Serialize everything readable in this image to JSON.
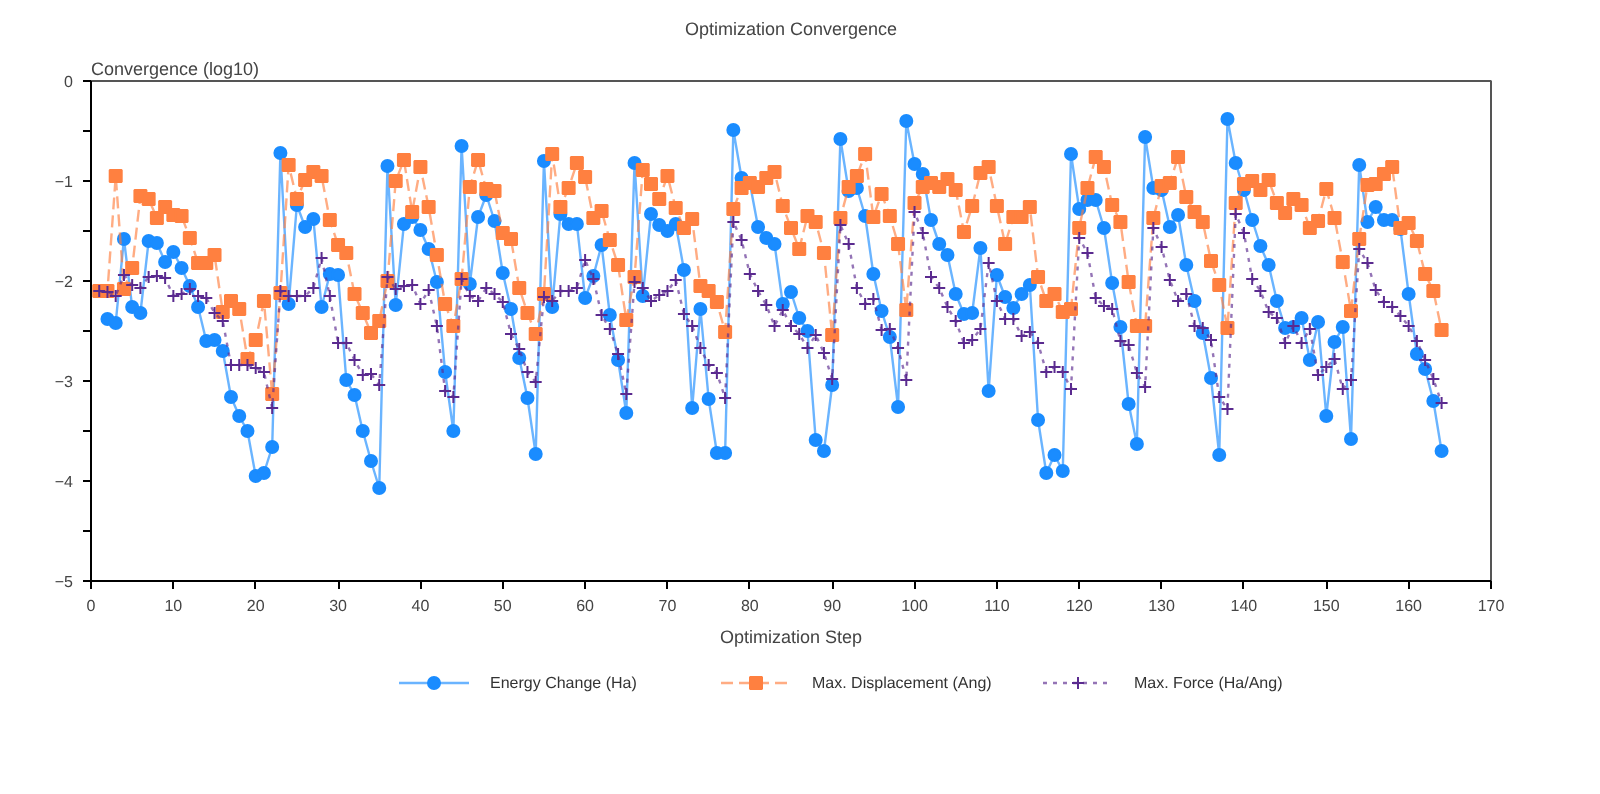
{
  "chart_data": {
    "type": "line",
    "title": "Optimization Convergence",
    "xlabel": "Optimization Step",
    "ylabel": "Convergence (log10)",
    "xlim": [
      0,
      170
    ],
    "xticks": [
      0,
      10,
      20,
      30,
      40,
      50,
      60,
      70,
      80,
      90,
      100,
      110,
      120,
      130,
      140,
      150,
      160,
      170
    ],
    "ylim": [
      -5,
      0
    ],
    "yticks": [
      -5,
      {
        "value": -4.5,
        "label": null
      },
      -4,
      {
        "value": -3.5,
        "label": null
      },
      -3,
      {
        "value": -2.5,
        "label": null
      },
      -2,
      {
        "value": -1.5,
        "label": null
      },
      -1,
      {
        "value": -0.5,
        "label": null
      },
      0
    ],
    "grid": false,
    "legend": "bottom",
    "x": [
      1,
      2,
      3,
      4,
      5,
      6,
      7,
      8,
      9,
      10,
      11,
      12,
      13,
      14,
      15,
      16,
      17,
      18,
      19,
      20,
      21,
      22,
      23,
      24,
      25,
      26,
      27,
      28,
      29,
      30,
      31,
      32,
      33,
      34,
      35,
      36,
      37,
      38,
      39,
      40,
      41,
      42,
      43,
      44,
      45,
      46,
      47,
      48,
      49,
      50,
      51,
      52,
      53,
      54,
      55,
      56,
      57,
      58,
      59,
      60,
      61,
      62,
      63,
      64,
      65,
      66,
      67,
      68,
      69,
      70,
      71,
      72,
      73,
      74,
      75,
      76,
      77,
      78,
      79,
      80,
      81,
      82,
      83,
      84,
      85,
      86,
      87,
      88,
      89,
      90,
      91,
      92,
      93,
      94,
      95,
      96,
      97,
      98,
      99,
      100,
      101,
      102,
      103,
      104,
      105,
      106,
      107,
      108,
      109,
      110,
      111,
      112,
      113,
      114,
      115,
      116,
      117,
      118,
      119,
      120,
      121,
      122,
      123,
      124,
      125,
      126,
      127,
      128,
      129,
      130,
      131,
      132,
      133,
      134,
      135,
      136,
      137,
      138,
      139,
      140,
      141,
      142,
      143,
      144,
      145,
      146,
      147,
      148,
      149,
      150,
      151,
      152,
      153,
      154,
      155,
      156,
      157,
      158,
      159,
      160,
      161,
      162,
      163,
      164
    ],
    "series": [
      {
        "name": "Energy Change (Ha)",
        "color": "#1a8cff",
        "marker": "circle",
        "line_style": "solid",
        "values": [
          null,
          -2.38,
          -2.42,
          -1.58,
          -2.26,
          -2.32,
          -1.6,
          -1.62,
          -1.81,
          -1.71,
          -1.87,
          -2.05,
          -2.26,
          -2.6,
          -2.59,
          -2.7,
          -3.16,
          -3.35,
          -3.5,
          -3.95,
          -3.92,
          -3.66,
          -0.72,
          -2.23,
          -1.24,
          -1.46,
          -1.38,
          -2.26,
          -1.93,
          -1.94,
          -2.99,
          -3.14,
          -3.5,
          -3.8,
          -4.07,
          -0.85,
          -2.24,
          -1.43,
          -1.36,
          -1.49,
          -1.68,
          -2.01,
          -2.91,
          -3.5,
          -0.65,
          -2.03,
          -1.36,
          -1.14,
          -1.4,
          -1.92,
          -2.28,
          -2.77,
          -3.17,
          -3.73,
          -0.8,
          -2.26,
          -1.33,
          -1.43,
          -1.43,
          -2.17,
          -1.95,
          -1.64,
          -2.34,
          -2.79,
          -3.32,
          -0.82,
          -2.15,
          -1.33,
          -1.44,
          -1.5,
          -1.43,
          -1.89,
          -3.27,
          -2.28,
          -3.18,
          -3.72,
          -3.72,
          -0.49,
          -0.97,
          -1.02,
          -1.46,
          -1.57,
          -1.63,
          -2.23,
          -2.11,
          -2.37,
          -2.5,
          -3.59,
          -3.7,
          -3.04,
          -0.58,
          -1.1,
          -1.07,
          -1.35,
          -1.93,
          -2.3,
          -2.56,
          -3.26,
          -0.4,
          -0.83,
          -0.93,
          -1.39,
          -1.63,
          -1.74,
          -2.13,
          -2.33,
          -2.32,
          -1.67,
          -3.1,
          -1.94,
          -2.16,
          -2.27,
          -2.13,
          -2.04,
          -3.39,
          -3.92,
          -3.74,
          -3.9,
          -0.73,
          -1.28,
          -1.19,
          -1.19,
          -1.47,
          -2.02,
          -2.46,
          -3.23,
          -3.63,
          -0.56,
          -1.07,
          -1.09,
          -1.46,
          -1.34,
          -1.84,
          -2.2,
          -2.52,
          -2.97,
          -3.74,
          -0.38,
          -0.82,
          -1.09,
          -1.39,
          -1.65,
          -1.84,
          -2.2,
          -2.47,
          -2.46,
          -2.37,
          -2.79,
          -2.41,
          -3.35,
          -2.61,
          -2.46,
          -3.58,
          -0.84,
          -1.41,
          -1.26,
          -1.39,
          -1.39,
          -1.48,
          -2.13,
          -2.73,
          -2.88,
          -3.2,
          -3.7
        ]
      },
      {
        "name": "Max. Displacement (Ang)",
        "color": "#ff8040",
        "marker": "square",
        "line_style": "dashed",
        "values": [
          -2.1,
          -2.1,
          -0.95,
          -2.08,
          -1.87,
          -1.15,
          -1.18,
          -1.37,
          -1.26,
          -1.34,
          -1.35,
          -1.57,
          -1.82,
          -1.82,
          -1.74,
          -2.31,
          -2.2,
          -2.28,
          -2.78,
          -2.59,
          -2.2,
          -3.13,
          -2.12,
          -0.84,
          -1.18,
          -0.99,
          -0.91,
          -0.95,
          -1.39,
          -1.64,
          -1.72,
          -2.13,
          -2.32,
          -2.52,
          -2.4,
          -2.0,
          -1.0,
          -0.79,
          -1.31,
          -0.86,
          -1.26,
          -1.74,
          -2.23,
          -2.45,
          -1.98,
          -1.06,
          -0.79,
          -1.08,
          -1.1,
          -1.52,
          -1.58,
          -2.07,
          -2.32,
          -2.53,
          -2.13,
          -0.73,
          -1.26,
          -1.07,
          -0.82,
          -0.96,
          -1.37,
          -1.3,
          -1.59,
          -1.84,
          -2.39,
          -1.96,
          -0.89,
          -1.03,
          -1.18,
          -0.95,
          -1.27,
          -1.47,
          -1.38,
          -2.05,
          -2.1,
          -2.21,
          -2.51,
          -1.28,
          -1.07,
          -1.02,
          -1.06,
          -0.97,
          -0.91,
          -1.25,
          -1.47,
          -1.68,
          -1.35,
          -1.41,
          -1.72,
          -2.54,
          -1.37,
          -1.06,
          -0.95,
          -0.73,
          -1.36,
          -1.13,
          -1.35,
          -1.63,
          -2.29,
          -1.22,
          -1.06,
          -1.02,
          -1.06,
          -0.98,
          -1.09,
          -1.51,
          -1.25,
          -0.92,
          -0.86,
          -1.25,
          -1.63,
          -1.36,
          -1.36,
          -1.26,
          -1.96,
          -2.2,
          -2.13,
          -2.31,
          -2.28,
          -1.47,
          -1.07,
          -0.76,
          -0.86,
          -1.24,
          -1.41,
          -2.01,
          -2.45,
          -2.45,
          -1.37,
          -1.05,
          -1.02,
          -0.76,
          -1.16,
          -1.31,
          -1.41,
          -1.8,
          -2.04,
          -2.47,
          -1.22,
          -1.03,
          -1.0,
          -1.09,
          -0.99,
          -1.22,
          -1.32,
          -1.18,
          -1.24,
          -1.47,
          -1.4,
          -1.08,
          -1.37,
          -1.81,
          -2.3,
          -1.58,
          -1.04,
          -1.03,
          -0.93,
          -0.86,
          -1.47,
          -1.42,
          -1.6,
          -1.93,
          -2.1,
          -2.49
        ]
      },
      {
        "name": "Max. Force (Ha/Ang)",
        "color": "#5a2a8f",
        "marker": "cross",
        "line_style": "dotted",
        "values": [
          -2.1,
          -2.11,
          -2.15,
          -1.94,
          -2.04,
          -2.07,
          -1.96,
          -1.95,
          -1.97,
          -2.15,
          -2.13,
          -2.08,
          -2.15,
          -2.17,
          -2.32,
          -2.4,
          -2.84,
          -2.84,
          -2.84,
          -2.87,
          -2.91,
          -3.27,
          -2.1,
          -2.15,
          -2.15,
          -2.15,
          -2.07,
          -1.77,
          -2.15,
          -2.62,
          -2.62,
          -2.79,
          -2.94,
          -2.93,
          -3.04,
          -1.96,
          -2.08,
          -2.05,
          -2.04,
          -2.23,
          -2.09,
          -2.45,
          -3.1,
          -3.16,
          -1.98,
          -2.15,
          -2.2,
          -2.07,
          -2.13,
          -2.21,
          -2.53,
          -2.68,
          -2.91,
          -3.01,
          -2.16,
          -2.2,
          -2.1,
          -2.1,
          -2.07,
          -1.79,
          -1.98,
          -2.34,
          -2.48,
          -2.73,
          -3.13,
          -2.01,
          -2.07,
          -2.2,
          -2.14,
          -2.1,
          -1.99,
          -2.33,
          -2.45,
          -2.67,
          -2.84,
          -2.92,
          -3.17,
          -1.41,
          -1.59,
          -1.93,
          -2.1,
          -2.24,
          -2.45,
          -2.29,
          -2.45,
          -2.53,
          -2.67,
          -2.54,
          -2.72,
          -2.98,
          -1.44,
          -1.63,
          -2.07,
          -2.23,
          -2.18,
          -2.49,
          -2.48,
          -2.67,
          -2.99,
          -1.31,
          -1.52,
          -1.96,
          -2.07,
          -2.26,
          -2.4,
          -2.62,
          -2.59,
          -2.48,
          -1.82,
          -2.2,
          -2.38,
          -2.38,
          -2.55,
          -2.51,
          -2.62,
          -2.91,
          -2.86,
          -2.91,
          -3.08,
          -1.57,
          -1.72,
          -2.17,
          -2.25,
          -2.28,
          -2.6,
          -2.64,
          -2.92,
          -3.06,
          -1.47,
          -1.66,
          -1.99,
          -2.2,
          -2.13,
          -2.45,
          -2.47,
          -2.59,
          -3.16,
          -3.28,
          -1.33,
          -1.52,
          -1.98,
          -2.1,
          -2.31,
          -2.37,
          -2.62,
          -2.45,
          -2.62,
          -2.48,
          -2.94,
          -2.86,
          -2.78,
          -3.08,
          -2.99,
          -1.68,
          -1.82,
          -2.09,
          -2.21,
          -2.26,
          -2.35,
          -2.45,
          -2.6,
          -2.79,
          -2.98,
          -3.22
        ]
      }
    ]
  }
}
